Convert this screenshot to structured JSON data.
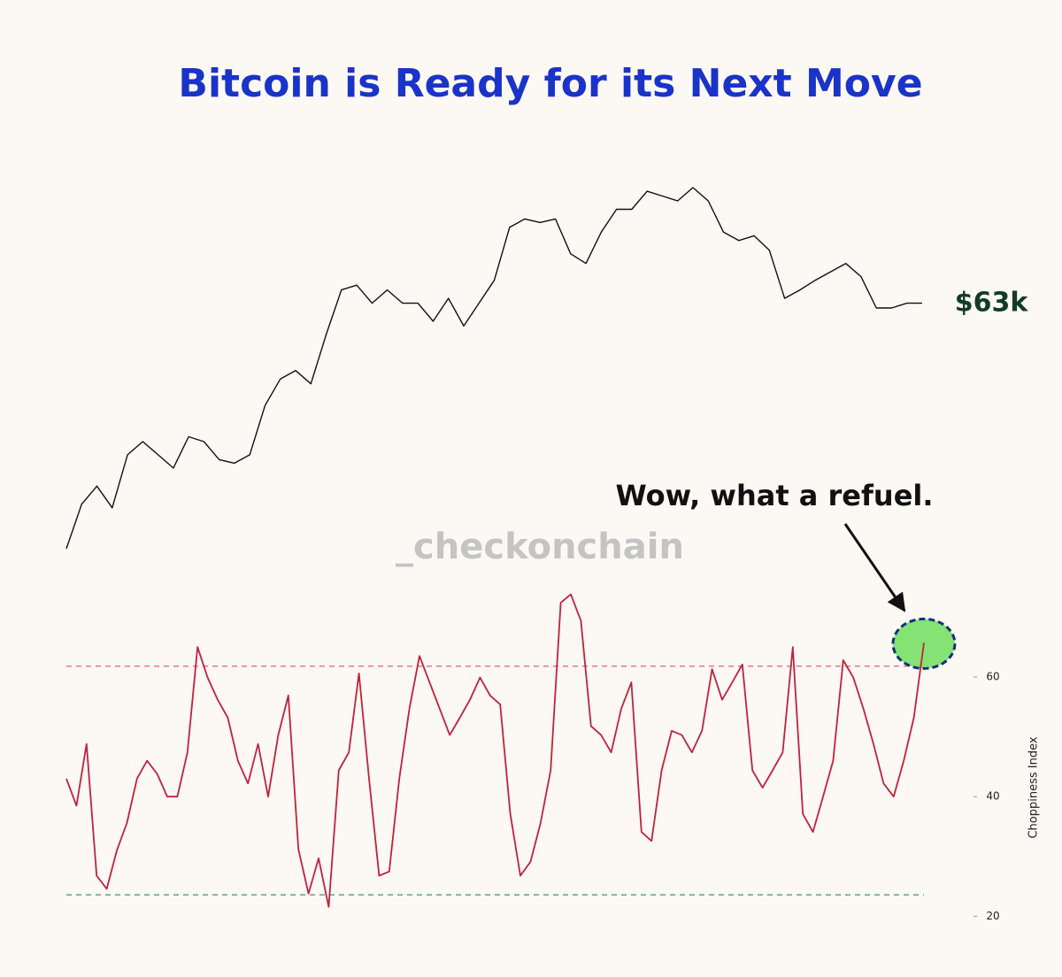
{
  "chart_data": [
    {
      "type": "line",
      "title": "Bitcoin is Ready for its Next Move",
      "color": "#111111",
      "end_label": "$63k",
      "values": [
        42.6,
        46.3,
        47.8,
        46.0,
        50.4,
        51.5,
        50.4,
        49.3,
        51.9,
        51.5,
        50.0,
        49.7,
        50.4,
        54.5,
        56.7,
        57.4,
        56.3,
        60.4,
        64.1,
        64.5,
        63.0,
        64.1,
        63.0,
        63.0,
        61.5,
        63.4,
        61.1,
        63.0,
        64.9,
        69.3,
        70.0,
        69.7,
        70.0,
        67.1,
        66.3,
        68.9,
        70.8,
        70.8,
        72.3,
        71.9,
        71.5,
        72.6,
        71.5,
        68.9,
        68.2,
        68.6,
        67.4,
        63.4,
        64.1,
        64.9,
        65.6,
        66.3,
        65.2,
        62.6,
        62.6,
        63.0,
        63.0
      ]
    },
    {
      "type": "line",
      "color": "#c0223a",
      "y_label": "Choppiness Index",
      "annotation": "Wow, what a refuel.",
      "watermark": "_checkonchain",
      "ylim": [
        18,
        77
      ],
      "yticks": [
        20,
        40,
        60
      ],
      "hlines": [
        {
          "value": 61.8,
          "color": "#e05060"
        },
        {
          "value": 23.6,
          "color": "#3a9a5a"
        }
      ],
      "values": [
        43,
        38.5,
        48.8,
        26.8,
        24.6,
        31,
        35.6,
        43,
        46,
        43.8,
        40,
        40,
        47.4,
        65,
        59.9,
        56.2,
        53.2,
        46,
        42.2,
        48.8,
        40,
        50.3,
        56.9,
        31.2,
        23.8,
        29.7,
        21.6,
        44.4,
        47.4,
        60.6,
        43,
        26.8,
        27.5,
        43,
        54.7,
        63.5,
        59.1,
        54.7,
        50.3,
        53.2,
        56.2,
        59.9,
        56.9,
        55.4,
        37.1,
        26.8,
        29.1,
        35.6,
        44.4,
        72.4,
        73.8,
        69.4,
        51.8,
        50.3,
        47.4,
        54.7,
        59.1,
        34.1,
        32.6,
        44.4,
        51,
        50.3,
        47.4,
        51,
        61.3,
        56.2,
        59.1,
        62.1,
        44.4,
        41.5,
        44.4,
        47.4,
        65,
        37.1,
        34.1,
        40,
        46,
        62.8,
        59.9,
        54.7,
        48.8,
        42.2,
        40,
        46,
        53.2,
        65.7
      ]
    }
  ]
}
